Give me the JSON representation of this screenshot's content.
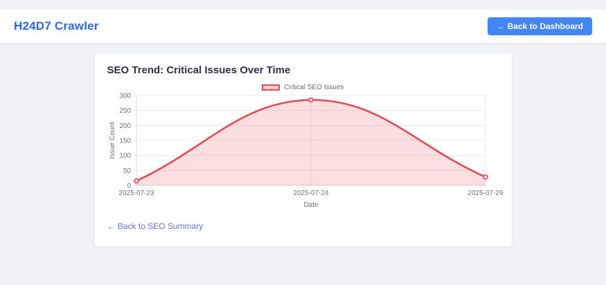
{
  "nav": {
    "title": "H24D7 Crawler",
    "back_button": "← Back to Dashboard"
  },
  "card": {
    "title": "SEO Trend: Critical Issues Over Time",
    "back_link": "← Back to SEO Summary"
  },
  "chart_data": {
    "type": "area",
    "title": "SEO Trend: Critical Issues Over Time",
    "categories": [
      "2025-07-23",
      "2025-07-24",
      "2025-07-29"
    ],
    "series": [
      {
        "name": "Critical SEO Issues",
        "values": [
          15,
          285,
          28
        ]
      }
    ],
    "xlabel": "Date",
    "ylabel": "Issue Count",
    "ylim": [
      0,
      300
    ],
    "yticks": [
      0,
      50,
      100,
      150,
      200,
      250,
      300
    ],
    "grid": true,
    "legend_position": "top",
    "smooth": true,
    "line_color": "#e8494f",
    "fill_color": "rgba(232,73,79,0.18)",
    "point_fill": "#f8dcde",
    "grid_color": "#e9e9e9",
    "axis_color": "#dadada"
  },
  "colors": {
    "page_bg": "#f0f2f5",
    "brand_blue": "#2a66f0",
    "button_blue": "#4285f4",
    "link_purple": "#6b6cf2"
  }
}
